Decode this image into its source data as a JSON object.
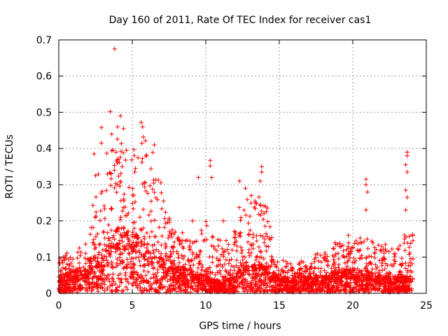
{
  "chart_data": {
    "type": "scatter",
    "title": "Day 160 of 2011, Rate Of TEC Index for receiver cas1",
    "xlabel": "GPS time / hours",
    "ylabel": "ROTI / TECUs",
    "xlim": [
      0,
      25
    ],
    "ylim": [
      0,
      0.7
    ],
    "x_ticks": [
      0,
      5,
      10,
      15,
      20,
      25
    ],
    "x_tick_labels": [
      "0",
      "5",
      "10",
      "15",
      "20",
      "25"
    ],
    "y_ticks": [
      0,
      0.1,
      0.2,
      0.3,
      0.4,
      0.5,
      0.6,
      0.7
    ],
    "y_tick_labels": [
      "0",
      "0.1",
      "0.2",
      "0.3",
      "0.4",
      "0.5",
      "0.6",
      "0.7"
    ],
    "grid": true,
    "marker": "+",
    "color": "#ff0000",
    "series": [
      {
        "name": "ROTI",
        "note": "dense cloud of thousands of points; background density profile and notable outliers listed",
        "envelope": [
          {
            "x": 0.0,
            "base": 0.03,
            "peak": 0.1
          },
          {
            "x": 1.0,
            "base": 0.04,
            "peak": 0.12
          },
          {
            "x": 2.0,
            "base": 0.05,
            "peak": 0.15
          },
          {
            "x": 2.5,
            "base": 0.07,
            "peak": 0.3
          },
          {
            "x": 3.0,
            "base": 0.08,
            "peak": 0.4
          },
          {
            "x": 3.5,
            "base": 0.1,
            "peak": 0.42
          },
          {
            "x": 4.0,
            "base": 0.12,
            "peak": 0.45
          },
          {
            "x": 4.5,
            "base": 0.12,
            "peak": 0.42
          },
          {
            "x": 5.0,
            "base": 0.11,
            "peak": 0.38
          },
          {
            "x": 5.5,
            "base": 0.1,
            "peak": 0.46
          },
          {
            "x": 6.0,
            "base": 0.09,
            "peak": 0.42
          },
          {
            "x": 6.5,
            "base": 0.08,
            "peak": 0.4
          },
          {
            "x": 7.0,
            "base": 0.07,
            "peak": 0.3
          },
          {
            "x": 7.5,
            "base": 0.06,
            "peak": 0.22
          },
          {
            "x": 8.0,
            "base": 0.05,
            "peak": 0.18
          },
          {
            "x": 9.0,
            "base": 0.04,
            "peak": 0.15
          },
          {
            "x": 10.0,
            "base": 0.03,
            "peak": 0.2
          },
          {
            "x": 11.0,
            "base": 0.02,
            "peak": 0.15
          },
          {
            "x": 12.0,
            "base": 0.03,
            "peak": 0.2
          },
          {
            "x": 12.5,
            "base": 0.05,
            "peak": 0.28
          },
          {
            "x": 13.0,
            "base": 0.05,
            "peak": 0.25
          },
          {
            "x": 14.0,
            "base": 0.05,
            "peak": 0.3
          },
          {
            "x": 15.0,
            "base": 0.03,
            "peak": 0.1
          },
          {
            "x": 16.0,
            "base": 0.03,
            "peak": 0.08
          },
          {
            "x": 17.0,
            "base": 0.03,
            "peak": 0.1
          },
          {
            "x": 18.0,
            "base": 0.03,
            "peak": 0.12
          },
          {
            "x": 19.0,
            "base": 0.04,
            "peak": 0.14
          },
          {
            "x": 20.0,
            "base": 0.04,
            "peak": 0.15
          },
          {
            "x": 21.0,
            "base": 0.04,
            "peak": 0.16
          },
          {
            "x": 22.0,
            "base": 0.03,
            "peak": 0.14
          },
          {
            "x": 23.0,
            "base": 0.03,
            "peak": 0.12
          },
          {
            "x": 24.0,
            "base": 0.03,
            "peak": 0.2
          }
        ],
        "outliers": [
          {
            "x": 3.8,
            "y": 0.675
          },
          {
            "x": 3.5,
            "y": 0.502
          },
          {
            "x": 4.2,
            "y": 0.49
          },
          {
            "x": 2.9,
            "y": 0.458
          },
          {
            "x": 4.4,
            "y": 0.455
          },
          {
            "x": 5.6,
            "y": 0.472
          },
          {
            "x": 5.7,
            "y": 0.46
          },
          {
            "x": 3.6,
            "y": 0.44
          },
          {
            "x": 4.0,
            "y": 0.46
          },
          {
            "x": 2.9,
            "y": 0.415
          },
          {
            "x": 6.5,
            "y": 0.41
          },
          {
            "x": 2.4,
            "y": 0.385
          },
          {
            "x": 3.9,
            "y": 0.39
          },
          {
            "x": 4.6,
            "y": 0.395
          },
          {
            "x": 2.5,
            "y": 0.325
          },
          {
            "x": 9.5,
            "y": 0.32
          },
          {
            "x": 10.3,
            "y": 0.367
          },
          {
            "x": 10.3,
            "y": 0.352
          },
          {
            "x": 10.4,
            "y": 0.32
          },
          {
            "x": 12.3,
            "y": 0.31
          },
          {
            "x": 12.7,
            "y": 0.29
          },
          {
            "x": 13.1,
            "y": 0.27
          },
          {
            "x": 13.8,
            "y": 0.35
          },
          {
            "x": 13.8,
            "y": 0.335
          },
          {
            "x": 13.7,
            "y": 0.31
          },
          {
            "x": 20.9,
            "y": 0.315
          },
          {
            "x": 20.9,
            "y": 0.3
          },
          {
            "x": 21.0,
            "y": 0.28
          },
          {
            "x": 20.9,
            "y": 0.23
          },
          {
            "x": 23.7,
            "y": 0.39
          },
          {
            "x": 23.7,
            "y": 0.38
          },
          {
            "x": 23.6,
            "y": 0.355
          },
          {
            "x": 23.7,
            "y": 0.335
          },
          {
            "x": 23.6,
            "y": 0.285
          },
          {
            "x": 23.7,
            "y": 0.265
          },
          {
            "x": 23.6,
            "y": 0.23
          },
          {
            "x": 9.1,
            "y": 0.2
          },
          {
            "x": 11.2,
            "y": 0.2
          },
          {
            "x": 18.8,
            "y": 0.14
          },
          {
            "x": 19.7,
            "y": 0.16
          }
        ]
      }
    ]
  }
}
